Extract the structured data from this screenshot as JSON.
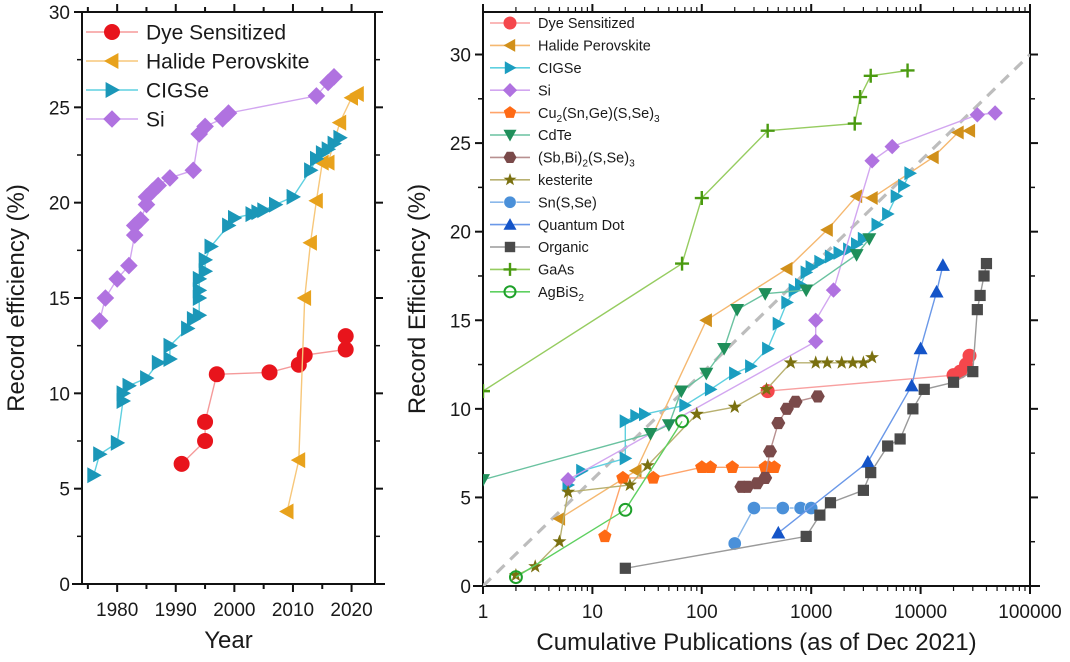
{
  "chart_data": [
    {
      "type": "line",
      "panel": "left",
      "title": "",
      "xlabel": "Year",
      "ylabel": "Record efficiency (%)",
      "xlim": [
        1974,
        2024
      ],
      "ylim": [
        0,
        30
      ],
      "x_scale": "linear",
      "xticks": [
        1980,
        1990,
        2000,
        2010,
        2020
      ],
      "xtick_labels": [
        "1980",
        "1990",
        "2000",
        "2010",
        "2020"
      ],
      "yticks": [
        0,
        5,
        10,
        15,
        20,
        25,
        30
      ],
      "ytick_labels": [
        "0",
        "5",
        "10",
        "15",
        "20",
        "25",
        "30"
      ],
      "grid": false,
      "legend_position": "top-left",
      "series": [
        {
          "name": "Dye Sensitized",
          "marker": "circle",
          "color": "#e8141c",
          "line_color": "#f59a9a",
          "x": [
            1991,
            1995,
            1995,
            1997,
            2006,
            2011,
            2012,
            2019,
            2019
          ],
          "y": [
            6.3,
            7.5,
            8.5,
            11.0,
            11.1,
            11.5,
            12.0,
            12.3,
            13.0
          ]
        },
        {
          "name": "Halide Perovskite",
          "marker": "triangle-left",
          "color": "#e8a21c",
          "line_color": "#f7c77a",
          "x": [
            2009,
            2011,
            2012,
            2013,
            2014,
            2015,
            2016,
            2018,
            2020,
            2021
          ],
          "y": [
            3.8,
            6.5,
            15.0,
            17.9,
            20.1,
            22.1,
            22.1,
            24.2,
            25.5,
            25.7
          ]
        },
        {
          "name": "CIGSe",
          "marker": "triangle-right",
          "color": "#1b97b8",
          "line_color": "#5fd0e0",
          "x": [
            1976,
            1977,
            1980,
            1981,
            1981,
            1982,
            1985,
            1987,
            1989,
            1989,
            1992,
            1993,
            1994,
            1994,
            1994,
            1994,
            1995,
            1995,
            1996,
            1999,
            2000,
            2003,
            2004,
            2005,
            2007,
            2010,
            2013,
            2014,
            2015,
            2016,
            2017,
            2018
          ],
          "y": [
            5.7,
            6.8,
            7.4,
            9.6,
            10.0,
            10.4,
            10.8,
            11.6,
            11.8,
            12.5,
            13.4,
            13.9,
            14.1,
            15.0,
            15.4,
            16.0,
            16.4,
            17.0,
            17.7,
            18.8,
            19.2,
            19.4,
            19.5,
            19.6,
            19.9,
            20.3,
            21.7,
            22.3,
            22.6,
            22.8,
            23.1,
            23.4
          ]
        },
        {
          "name": "Si",
          "marker": "diamond",
          "color": "#b072e0",
          "line_color": "#d2a6f0",
          "x": [
            1977,
            1978,
            1980,
            1982,
            1983,
            1983,
            1984,
            1985,
            1985,
            1986,
            1987,
            1989,
            1993,
            1994,
            1995,
            1998,
            1999,
            2014,
            2016,
            2017
          ],
          "y": [
            13.8,
            15.0,
            16.0,
            16.7,
            18.3,
            18.8,
            19.1,
            19.9,
            20.3,
            20.6,
            20.9,
            21.3,
            21.7,
            23.6,
            24.0,
            24.4,
            24.7,
            25.6,
            26.3,
            26.6
          ]
        }
      ]
    },
    {
      "type": "line",
      "panel": "right",
      "title": "",
      "xlabel": "Cumulative Publications (as of Dec 2021)",
      "ylabel": "Record Efficiency (%)",
      "xlim": [
        1,
        100000
      ],
      "ylim": [
        0,
        32.4
      ],
      "x_scale": "log",
      "xticks": [
        1,
        10,
        100,
        1000,
        10000,
        100000
      ],
      "xtick_labels": [
        "1",
        "10",
        "100",
        "1000",
        "10000",
        "100000"
      ],
      "yticks": [
        0,
        5,
        10,
        15,
        20,
        25,
        30
      ],
      "ytick_labels": [
        "0",
        "5",
        "10",
        "15",
        "20",
        "25",
        "30"
      ],
      "grid": false,
      "legend_position": "top-left",
      "trend_line": {
        "style": "dashed",
        "color": "#bdbdbd",
        "x": [
          1,
          100000
        ],
        "y": [
          0,
          30
        ]
      },
      "series": [
        {
          "name": "Dye Sensitized",
          "label_parts": [
            [
              "Dye Sensitized",
              ""
            ]
          ],
          "marker": "circle",
          "color": "#f5474c",
          "line_color": "#f8a0a0",
          "x": [
            400,
            20000,
            23000,
            26000,
            28000
          ],
          "y": [
            11.0,
            11.9,
            12.1,
            12.5,
            13.0
          ]
        },
        {
          "name": "Halide Perovskite",
          "label_parts": [
            [
              "Halide Perovskite",
              ""
            ]
          ],
          "marker": "triangle-left",
          "color": "#d1901a",
          "line_color": "#f5b870",
          "x": [
            5,
            25,
            110,
            600,
            1400,
            2600,
            3600,
            13000,
            22000,
            28000
          ],
          "y": [
            3.8,
            6.5,
            15.0,
            17.9,
            20.1,
            22.0,
            21.9,
            24.2,
            25.6,
            25.7
          ]
        },
        {
          "name": "CIGSe",
          "label_parts": [
            [
              "CIGSe",
              ""
            ]
          ],
          "marker": "triangle-right",
          "color": "#1b9dc0",
          "line_color": "#5fd0e0",
          "x": [
            6,
            8,
            20,
            20,
            25,
            30,
            70,
            120,
            200,
            280,
            400,
            500,
            600,
            700,
            800,
            900,
            1000,
            1200,
            1500,
            1800,
            2200,
            2600,
            3000,
            4000,
            5000,
            6000,
            7000,
            8000
          ],
          "y": [
            5.7,
            6.5,
            7.2,
            9.3,
            9.6,
            9.7,
            10.2,
            11.1,
            12.0,
            12.4,
            13.4,
            14.8,
            16.0,
            16.7,
            17.0,
            17.7,
            18.0,
            18.3,
            18.6,
            18.8,
            19.0,
            19.3,
            19.6,
            20.4,
            21.0,
            22.0,
            22.6,
            23.3
          ]
        },
        {
          "name": "Si",
          "label_parts": [
            [
              "Si",
              ""
            ]
          ],
          "marker": "diamond",
          "color": "#b072e0",
          "line_color": "#d2a6f0",
          "x": [
            6,
            1100,
            1100,
            1600,
            3600,
            5500,
            33000,
            48000
          ],
          "y": [
            6.0,
            13.8,
            15.0,
            16.7,
            24.0,
            24.8,
            26.6,
            26.7
          ]
        },
        {
          "name": "Cu2(Sn,Ge)(S,Se)3",
          "label_parts": [
            [
              "Cu",
              ""
            ],
            [
              "2",
              "sub"
            ],
            [
              "(Sn,Ge)(S,Se)",
              ""
            ],
            [
              "3",
              "sub"
            ]
          ],
          "marker": "pentagon",
          "color": "#ff6a14",
          "line_color": "#ffa46a",
          "x": [
            13,
            19,
            36,
            100,
            120,
            190,
            380,
            410,
            460
          ],
          "y": [
            2.8,
            6.1,
            6.1,
            6.7,
            6.7,
            6.7,
            6.7,
            6.7,
            6.7
          ]
        },
        {
          "name": "CdTe",
          "label_parts": [
            [
              "CdTe",
              ""
            ]
          ],
          "marker": "triangle-down",
          "color": "#1f8f5a",
          "line_color": "#6ac2a0",
          "x": [
            1,
            34,
            50,
            65,
            110,
            160,
            210,
            380,
            900,
            2600,
            3400
          ],
          "y": [
            6.0,
            8.6,
            9.1,
            11.0,
            12.0,
            13.4,
            15.6,
            16.5,
            16.7,
            18.7,
            19.6
          ]
        },
        {
          "name": "(Sb,Bi)2(S,Se)3",
          "label_parts": [
            [
              "(Sb,Bi)",
              ""
            ],
            [
              "2",
              "sub"
            ],
            [
              "(S,Se)",
              ""
            ],
            [
              "3",
              "sub"
            ]
          ],
          "marker": "hexagon",
          "color": "#7a4a4a",
          "line_color": "#b89090",
          "x": [
            230,
            260,
            320,
            380,
            420,
            500,
            600,
            720,
            1150
          ],
          "y": [
            5.6,
            5.6,
            5.8,
            6.1,
            7.6,
            9.2,
            10.0,
            10.4,
            10.7
          ]
        },
        {
          "name": "kesterite",
          "label_parts": [
            [
              "kesterite",
              ""
            ]
          ],
          "marker": "star",
          "color": "#7a7010",
          "line_color": "#b8b070",
          "x": [
            2,
            3,
            5,
            6,
            22,
            32,
            90,
            200,
            390,
            650,
            1100,
            1400,
            1900,
            2400,
            3000,
            3600
          ],
          "y": [
            0.6,
            1.1,
            2.5,
            5.3,
            5.7,
            6.8,
            9.7,
            10.1,
            11.1,
            12.6,
            12.6,
            12.6,
            12.6,
            12.6,
            12.6,
            12.9
          ]
        },
        {
          "name": "Sn(S,Se)",
          "label_parts": [
            [
              "Sn(S,Se)",
              ""
            ]
          ],
          "marker": "sphere",
          "color": "#4a90d9",
          "line_color": "#8ab8ea",
          "x": [
            200,
            300,
            550,
            800,
            1000
          ],
          "y": [
            2.4,
            4.4,
            4.4,
            4.4,
            4.4
          ]
        },
        {
          "name": "Quantum Dot",
          "label_parts": [
            [
              "Quantum Dot",
              ""
            ]
          ],
          "marker": "triangle-up",
          "color": "#1454c8",
          "line_color": "#6a98e8",
          "x": [
            500,
            3300,
            8300,
            10000,
            14000,
            16000
          ],
          "y": [
            3.0,
            7.0,
            11.3,
            13.4,
            16.6,
            18.1
          ]
        },
        {
          "name": "Organic",
          "label_parts": [
            [
              "Organic",
              ""
            ]
          ],
          "marker": "square",
          "color": "#4a4a4a",
          "line_color": "#9a9a9a",
          "x": [
            20,
            900,
            1200,
            1500,
            3000,
            3500,
            5000,
            6500,
            8500,
            10800,
            20000,
            30000,
            33000,
            35000,
            38000,
            40000
          ],
          "y": [
            1.0,
            2.8,
            4.0,
            4.7,
            5.4,
            6.4,
            7.9,
            8.3,
            10.0,
            11.1,
            11.5,
            12.1,
            15.6,
            16.4,
            17.5,
            18.2
          ]
        },
        {
          "name": "GaAs",
          "label_parts": [
            [
              "GaAs",
              ""
            ]
          ],
          "marker": "plus",
          "color": "#4a9a10",
          "line_color": "#96cc60",
          "x": [
            1,
            66,
            100,
            400,
            2500,
            2800,
            3500,
            7600
          ],
          "y": [
            11.0,
            18.2,
            21.9,
            25.7,
            26.1,
            27.6,
            28.8,
            29.1
          ]
        },
        {
          "name": "AgBiS2",
          "label_parts": [
            [
              "AgBiS",
              ""
            ],
            [
              "2",
              "sub"
            ]
          ],
          "marker": "open-circle",
          "color": "#1ea02a",
          "line_color": "#5ed060",
          "x": [
            2,
            20,
            66
          ],
          "y": [
            0.5,
            4.3,
            9.3
          ]
        }
      ]
    }
  ]
}
